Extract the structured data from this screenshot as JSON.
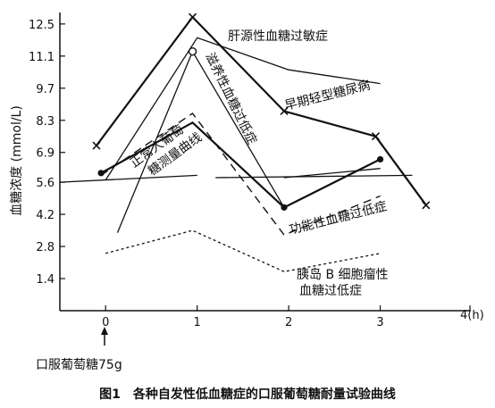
{
  "chart_data": {
    "type": "line",
    "title": "",
    "caption": "图1　各种自发性低血糖症的口服葡萄糖耐量试验曲线",
    "xlabel": "",
    "ylabel": "血糖浓度 (mmol/L)",
    "x_unit_label": "4(h)",
    "x_ticks": [
      "0",
      "1",
      "2",
      "3"
    ],
    "y_ticks": [
      "12.5",
      "11.1",
      "9.7",
      "8.3",
      "6.9",
      "5.6",
      "4.2",
      "2.8",
      "1.4"
    ],
    "xlim": [
      -0.5,
      4
    ],
    "ylim": [
      0,
      13
    ],
    "grid": false,
    "legend": "none",
    "annotation": "口服葡萄糖75g",
    "series": [
      {
        "name": "肝源性血糖过敏症",
        "style": "solid",
        "marker": "none",
        "x": [
          0,
          1,
          2,
          3
        ],
        "y": [
          5.7,
          11.9,
          10.5,
          9.9
        ]
      },
      {
        "name": "早期轻型糖尿病",
        "style": "solid-bold",
        "marker": "x",
        "x": [
          -0.1,
          0.95,
          1.95,
          2.95,
          3.5
        ],
        "y": [
          7.2,
          12.8,
          8.7,
          7.6,
          4.6
        ]
      },
      {
        "name": "滋养性血糖过低症",
        "style": "solid",
        "marker": "circle",
        "x": [
          0.13,
          0.95,
          1.95
        ],
        "y": [
          3.4,
          11.3,
          4.5
        ]
      },
      {
        "name": "正常人葡萄糖测量曲线",
        "style": "solid-bold",
        "marker": "circle-filled",
        "x": [
          -0.05,
          0.95,
          1.95,
          3.0
        ],
        "y": [
          6.0,
          8.2,
          4.5,
          6.6
        ]
      },
      {
        "name": "功能性血糖过低症",
        "style": "dashed",
        "marker": "none",
        "x": [
          -0.05,
          0.95,
          1.95,
          3.0
        ],
        "y": [
          5.9,
          8.6,
          3.3,
          5.0
        ]
      },
      {
        "name": "胰岛B细胞瘤性血糖过低症",
        "style": "dotted",
        "marker": "none",
        "x": [
          0,
          0.95,
          1.95,
          3.0
        ],
        "y": [
          2.5,
          3.5,
          1.7,
          2.5
        ]
      },
      {
        "name": "",
        "style": "solid",
        "marker": "none",
        "x": [
          -0.5,
          1.0
        ],
        "y": [
          5.6,
          5.9
        ]
      },
      {
        "name": "",
        "style": "solid",
        "marker": "none",
        "x": [
          1.2,
          3.35
        ],
        "y": [
          5.8,
          5.9
        ]
      },
      {
        "name": "",
        "style": "solid",
        "marker": "none",
        "x": [
          1.95,
          3.0
        ],
        "y": [
          5.8,
          6.2
        ]
      }
    ]
  }
}
